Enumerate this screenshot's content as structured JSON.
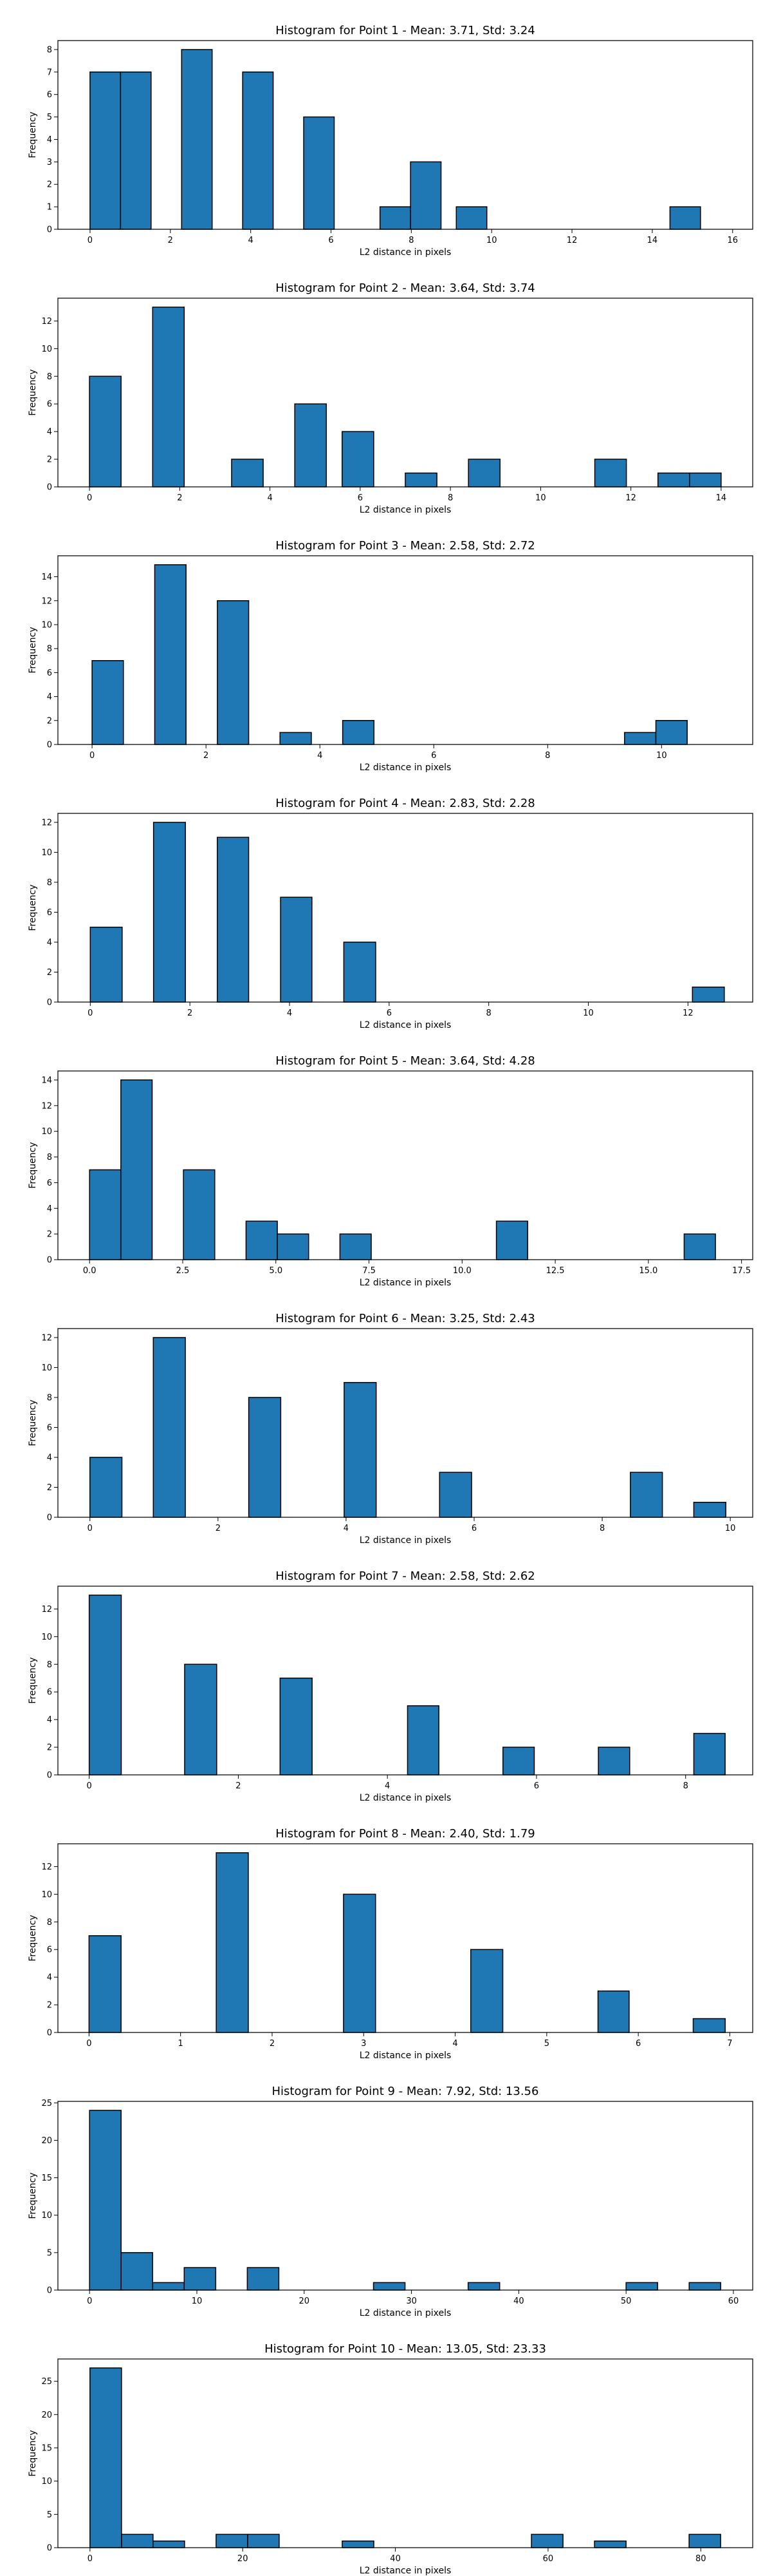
{
  "figure": {
    "bar_color": "#1f77b4",
    "edge_color": "#000000",
    "background": "#ffffff"
  },
  "chart_data": [
    {
      "type": "bar",
      "title": "Histogram for Point 1 - Mean: 3.71, Std: 3.24",
      "xlabel": "L2 distance in pixels",
      "ylabel": "Frequency",
      "xlim": [
        -0.8,
        16.5
      ],
      "ylim": [
        0,
        8.4
      ],
      "xticks": [
        0,
        2,
        4,
        6,
        8,
        10,
        12,
        14,
        16
      ],
      "xtick_labels": [
        "0",
        "2",
        "4",
        "6",
        "8",
        "10",
        "12",
        "14",
        "16"
      ],
      "yticks": [
        0,
        1,
        2,
        3,
        4,
        5,
        6,
        7,
        8
      ],
      "grid": false,
      "bars": [
        {
          "x0": 0.0,
          "x1": 0.76,
          "value": 7
        },
        {
          "x0": 0.76,
          "x1": 1.52,
          "value": 7
        },
        {
          "x0": 2.28,
          "x1": 3.04,
          "value": 8
        },
        {
          "x0": 3.8,
          "x1": 4.56,
          "value": 7
        },
        {
          "x0": 5.32,
          "x1": 6.08,
          "value": 5
        },
        {
          "x0": 7.22,
          "x1": 7.98,
          "value": 1
        },
        {
          "x0": 7.98,
          "x1": 8.74,
          "value": 3
        },
        {
          "x0": 9.12,
          "x1": 9.88,
          "value": 1
        },
        {
          "x0": 14.44,
          "x1": 15.2,
          "value": 1
        }
      ]
    },
    {
      "type": "bar",
      "title": "Histogram for Point 2 - Mean: 3.64, Std: 3.74",
      "xlabel": "L2 distance in pixels",
      "ylabel": "Frequency",
      "xlim": [
        -0.7,
        14.7
      ],
      "ylim": [
        0,
        13.65
      ],
      "xticks": [
        0,
        2,
        4,
        6,
        8,
        10,
        12,
        14
      ],
      "xtick_labels": [
        "0",
        "2",
        "4",
        "6",
        "8",
        "10",
        "12",
        "14"
      ],
      "yticks": [
        0,
        2,
        4,
        6,
        8,
        10,
        12
      ],
      "grid": false,
      "bars": [
        {
          "x0": 0.0,
          "x1": 0.7,
          "value": 8
        },
        {
          "x0": 1.4,
          "x1": 2.1,
          "value": 13
        },
        {
          "x0": 3.15,
          "x1": 3.85,
          "value": 2
        },
        {
          "x0": 4.55,
          "x1": 5.25,
          "value": 6
        },
        {
          "x0": 5.6,
          "x1": 6.3,
          "value": 4
        },
        {
          "x0": 7.0,
          "x1": 7.7,
          "value": 1
        },
        {
          "x0": 8.4,
          "x1": 9.1,
          "value": 2
        },
        {
          "x0": 11.2,
          "x1": 11.9,
          "value": 2
        },
        {
          "x0": 12.6,
          "x1": 13.3,
          "value": 1
        },
        {
          "x0": 13.3,
          "x1": 14.0,
          "value": 1
        }
      ]
    },
    {
      "type": "bar",
      "title": "Histogram for Point 3 - Mean: 2.58, Std: 2.72",
      "xlabel": "L2 distance in pixels",
      "ylabel": "Frequency",
      "xlim": [
        -0.6,
        11.6
      ],
      "ylim": [
        0,
        15.75
      ],
      "xticks": [
        0,
        2,
        4,
        6,
        8,
        10
      ],
      "xtick_labels": [
        "0",
        "2",
        "4",
        "6",
        "8",
        "10"
      ],
      "yticks": [
        0,
        2,
        4,
        6,
        8,
        10,
        12,
        14
      ],
      "grid": false,
      "bars": [
        {
          "x0": 0.0,
          "x1": 0.55,
          "value": 7
        },
        {
          "x0": 1.1,
          "x1": 1.65,
          "value": 15
        },
        {
          "x0": 2.2,
          "x1": 2.75,
          "value": 12
        },
        {
          "x0": 3.3,
          "x1": 3.85,
          "value": 1
        },
        {
          "x0": 4.4,
          "x1": 4.95,
          "value": 2
        },
        {
          "x0": 9.35,
          "x1": 9.9,
          "value": 1
        },
        {
          "x0": 9.9,
          "x1": 10.45,
          "value": 2
        }
      ]
    },
    {
      "type": "bar",
      "title": "Histogram for Point 4 - Mean: 2.83, Std: 2.28",
      "xlabel": "L2 distance in pixels",
      "ylabel": "Frequency",
      "xlim": [
        -0.65,
        13.3
      ],
      "ylim": [
        0,
        12.6
      ],
      "xticks": [
        0,
        2,
        4,
        6,
        8,
        10,
        12
      ],
      "xtick_labels": [
        "0",
        "2",
        "4",
        "6",
        "8",
        "10",
        "12"
      ],
      "yticks": [
        0,
        2,
        4,
        6,
        8,
        10,
        12
      ],
      "grid": false,
      "bars": [
        {
          "x0": 0.0,
          "x1": 0.64,
          "value": 5
        },
        {
          "x0": 1.27,
          "x1": 1.91,
          "value": 12
        },
        {
          "x0": 2.55,
          "x1": 3.18,
          "value": 11
        },
        {
          "x0": 3.82,
          "x1": 4.45,
          "value": 7
        },
        {
          "x0": 5.09,
          "x1": 5.73,
          "value": 4
        },
        {
          "x0": 12.09,
          "x1": 12.73,
          "value": 1
        }
      ]
    },
    {
      "type": "bar",
      "title": "Histogram for Point 5 - Mean: 3.64, Std: 4.28",
      "xlabel": "L2 distance in pixels",
      "ylabel": "Frequency",
      "xlim": [
        -0.85,
        17.8
      ],
      "ylim": [
        0,
        14.7
      ],
      "xticks": [
        0,
        2.5,
        5,
        7.5,
        10,
        12.5,
        15,
        17.5
      ],
      "xtick_labels": [
        "0.0",
        "2.5",
        "5.0",
        "7.5",
        "10.0",
        "12.5",
        "15.0",
        "17.5"
      ],
      "yticks": [
        0,
        2,
        4,
        6,
        8,
        10,
        12,
        14
      ],
      "grid": false,
      "bars": [
        {
          "x0": 0.0,
          "x1": 0.84,
          "value": 7
        },
        {
          "x0": 0.84,
          "x1": 1.68,
          "value": 14
        },
        {
          "x0": 2.52,
          "x1": 3.36,
          "value": 7
        },
        {
          "x0": 4.2,
          "x1": 5.04,
          "value": 3
        },
        {
          "x0": 5.04,
          "x1": 5.88,
          "value": 2
        },
        {
          "x0": 6.72,
          "x1": 7.56,
          "value": 2
        },
        {
          "x0": 10.92,
          "x1": 11.76,
          "value": 3
        },
        {
          "x0": 15.96,
          "x1": 16.8,
          "value": 2
        }
      ]
    },
    {
      "type": "bar",
      "title": "Histogram for Point 6 - Mean: 3.25, Std: 2.43",
      "xlabel": "L2 distance in pixels",
      "ylabel": "Frequency",
      "xlim": [
        -0.5,
        10.35
      ],
      "ylim": [
        0,
        12.6
      ],
      "xticks": [
        0,
        2,
        4,
        6,
        8,
        10
      ],
      "xtick_labels": [
        "0",
        "2",
        "4",
        "6",
        "8",
        "10"
      ],
      "yticks": [
        0,
        2,
        4,
        6,
        8,
        10,
        12
      ],
      "grid": false,
      "bars": [
        {
          "x0": 0.0,
          "x1": 0.5,
          "value": 4
        },
        {
          "x0": 0.99,
          "x1": 1.49,
          "value": 12
        },
        {
          "x0": 2.48,
          "x1": 2.98,
          "value": 8
        },
        {
          "x0": 3.97,
          "x1": 4.47,
          "value": 9
        },
        {
          "x0": 5.46,
          "x1": 5.96,
          "value": 3
        },
        {
          "x0": 8.44,
          "x1": 8.94,
          "value": 3
        },
        {
          "x0": 9.43,
          "x1": 9.93,
          "value": 1
        }
      ]
    },
    {
      "type": "bar",
      "title": "Histogram for Point 7 - Mean: 2.58, Std: 2.62",
      "xlabel": "L2 distance in pixels",
      "ylabel": "Frequency",
      "xlim": [
        -0.42,
        8.9
      ],
      "ylim": [
        0,
        13.65
      ],
      "xticks": [
        0,
        2,
        4,
        6,
        8
      ],
      "xtick_labels": [
        "0",
        "2",
        "4",
        "6",
        "8"
      ],
      "yticks": [
        0,
        2,
        4,
        6,
        8,
        10,
        12
      ],
      "grid": false,
      "bars": [
        {
          "x0": 0.0,
          "x1": 0.43,
          "value": 13
        },
        {
          "x0": 1.28,
          "x1": 1.71,
          "value": 8
        },
        {
          "x0": 2.56,
          "x1": 2.99,
          "value": 7
        },
        {
          "x0": 4.27,
          "x1": 4.69,
          "value": 5
        },
        {
          "x0": 5.55,
          "x1": 5.97,
          "value": 2
        },
        {
          "x0": 6.83,
          "x1": 7.25,
          "value": 2
        },
        {
          "x0": 8.11,
          "x1": 8.53,
          "value": 3
        }
      ]
    },
    {
      "type": "bar",
      "title": "Histogram for Point 8 - Mean: 2.40, Std: 1.79",
      "xlabel": "L2 distance in pixels",
      "ylabel": "Frequency",
      "xlim": [
        -0.34,
        7.25
      ],
      "ylim": [
        0,
        13.65
      ],
      "xticks": [
        0,
        1,
        2,
        3,
        4,
        5,
        6,
        7
      ],
      "xtick_labels": [
        "0",
        "1",
        "2",
        "3",
        "4",
        "5",
        "6",
        "7"
      ],
      "yticks": [
        0,
        2,
        4,
        6,
        8,
        10,
        12
      ],
      "grid": false,
      "bars": [
        {
          "x0": 0.0,
          "x1": 0.35,
          "value": 7
        },
        {
          "x0": 1.39,
          "x1": 1.74,
          "value": 13
        },
        {
          "x0": 2.78,
          "x1": 3.13,
          "value": 10
        },
        {
          "x0": 4.17,
          "x1": 4.52,
          "value": 6
        },
        {
          "x0": 5.56,
          "x1": 5.9,
          "value": 3
        },
        {
          "x0": 6.6,
          "x1": 6.95,
          "value": 1
        }
      ]
    },
    {
      "type": "bar",
      "title": "Histogram for Point 9 - Mean: 7.92, Std: 13.56",
      "xlabel": "L2 distance in pixels",
      "ylabel": "Frequency",
      "xlim": [
        -2.95,
        61.8
      ],
      "ylim": [
        0,
        25.2
      ],
      "xticks": [
        0,
        10,
        20,
        30,
        40,
        50,
        60
      ],
      "xtick_labels": [
        "0",
        "10",
        "20",
        "30",
        "40",
        "50",
        "60"
      ],
      "yticks": [
        0,
        5,
        10,
        15,
        20,
        25
      ],
      "grid": false,
      "bars": [
        {
          "x0": 0.0,
          "x1": 2.94,
          "value": 24
        },
        {
          "x0": 2.94,
          "x1": 5.88,
          "value": 5
        },
        {
          "x0": 5.88,
          "x1": 8.82,
          "value": 1
        },
        {
          "x0": 8.82,
          "x1": 11.76,
          "value": 3
        },
        {
          "x0": 14.7,
          "x1": 17.64,
          "value": 3
        },
        {
          "x0": 26.46,
          "x1": 29.4,
          "value": 1
        },
        {
          "x0": 35.28,
          "x1": 38.22,
          "value": 1
        },
        {
          "x0": 50.0,
          "x1": 52.94,
          "value": 1
        },
        {
          "x0": 55.88,
          "x1": 58.82,
          "value": 1
        }
      ]
    },
    {
      "type": "bar",
      "title": "Histogram for Point 10 - Mean: 13.05, Std: 23.33",
      "xlabel": "L2 distance in pixels",
      "ylabel": "Frequency",
      "xlim": [
        -4.2,
        86.8
      ],
      "ylim": [
        0,
        28.35
      ],
      "xticks": [
        0,
        20,
        40,
        60,
        80
      ],
      "xtick_labels": [
        "0",
        "20",
        "40",
        "60",
        "80"
      ],
      "yticks": [
        0,
        5,
        10,
        15,
        20,
        25
      ],
      "grid": false,
      "bars": [
        {
          "x0": 0.0,
          "x1": 4.13,
          "value": 27
        },
        {
          "x0": 4.13,
          "x1": 8.26,
          "value": 2
        },
        {
          "x0": 8.26,
          "x1": 12.39,
          "value": 1
        },
        {
          "x0": 16.52,
          "x1": 20.65,
          "value": 2
        },
        {
          "x0": 20.65,
          "x1": 24.78,
          "value": 2
        },
        {
          "x0": 33.04,
          "x1": 37.17,
          "value": 1
        },
        {
          "x0": 57.82,
          "x1": 61.95,
          "value": 2
        },
        {
          "x0": 66.08,
          "x1": 70.21,
          "value": 1
        },
        {
          "x0": 78.47,
          "x1": 82.6,
          "value": 2
        }
      ]
    }
  ]
}
